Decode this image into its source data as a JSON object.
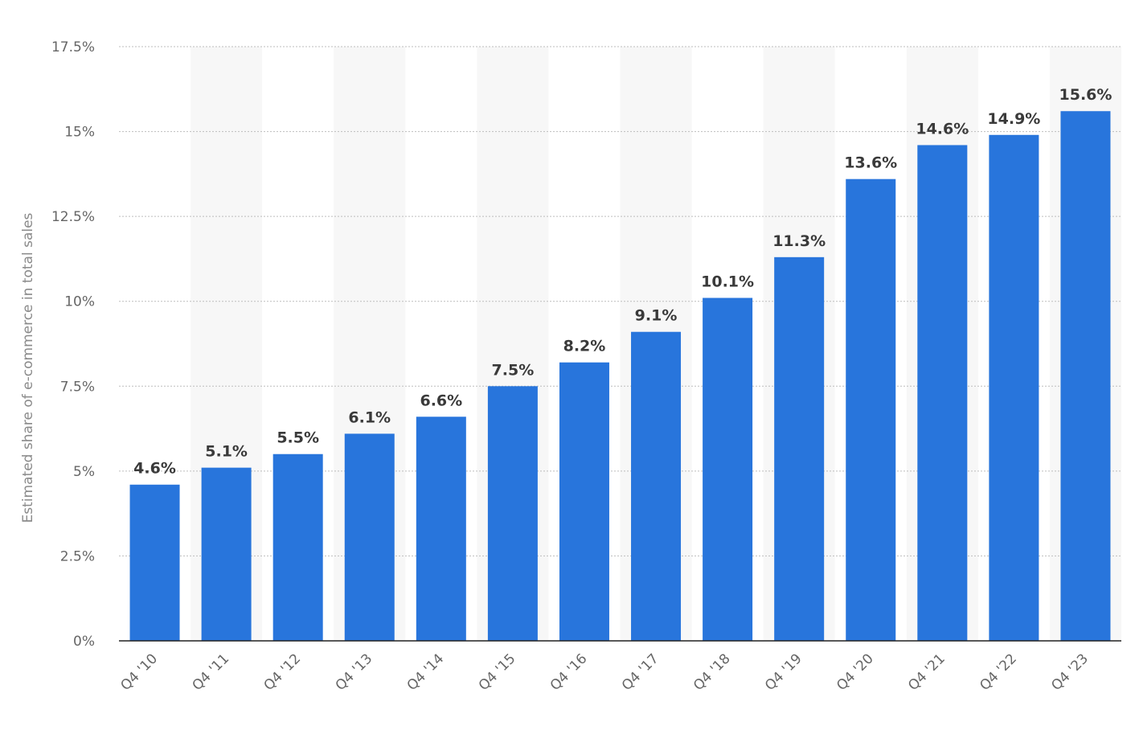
{
  "chart_data": {
    "type": "bar",
    "categories": [
      "Q4 '10",
      "Q4 '11",
      "Q4 '12",
      "Q4 '13",
      "Q4 '14",
      "Q4 '15",
      "Q4 '16",
      "Q4 '17",
      "Q4 '18",
      "Q4 '19",
      "Q4 '20",
      "Q4 '21",
      "Q4 '22",
      "Q4 '23"
    ],
    "values": [
      4.6,
      5.1,
      5.5,
      6.1,
      6.6,
      7.5,
      8.2,
      9.1,
      10.1,
      11.3,
      13.6,
      14.6,
      14.9,
      15.6
    ],
    "data_labels": [
      "4.6%",
      "5.1%",
      "5.5%",
      "6.1%",
      "6.6%",
      "7.5%",
      "8.2%",
      "9.1%",
      "10.1%",
      "11.3%",
      "13.6%",
      "14.6%",
      "14.9%",
      "15.6%"
    ],
    "ylabel": "Estimated share of e-commerce in total sales",
    "ylim": [
      0,
      17.5
    ],
    "yticks": [
      0,
      2.5,
      5,
      7.5,
      10,
      12.5,
      15,
      17.5
    ],
    "ytick_labels": [
      "0%",
      "2.5%",
      "5%",
      "7.5%",
      "10%",
      "12.5%",
      "15%",
      "17.5%"
    ],
    "grid": true,
    "bar_color": "#2875dc",
    "band_color": "#f7f7f7"
  }
}
